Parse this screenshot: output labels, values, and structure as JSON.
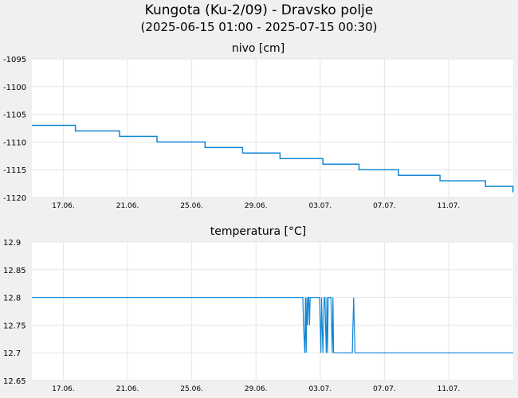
{
  "header": {
    "title": "Kungota (Ku-2/09) - Dravsko polje",
    "subtitle": "(2025-06-15 01:00 - 2025-07-15 00:30)"
  },
  "colors": {
    "background": "#f0f0f0",
    "plot_background": "#ffffff",
    "grid": "#e6e6e6",
    "line": "#1187d4"
  },
  "chart_data": [
    {
      "type": "line",
      "title": "nivo [cm]",
      "xlabel": "",
      "ylabel": "",
      "xlim": [
        "2025-06-15 01:00",
        "2025-07-15 00:30"
      ],
      "ylim": [
        -1120,
        -1095
      ],
      "yticks": [
        -1095,
        -1100,
        -1105,
        -1110,
        -1115,
        -1120
      ],
      "xtick_labels": [
        "17.06.",
        "21.06.",
        "25.06.",
        "29.06.",
        "03.07.",
        "07.07.",
        "11.07."
      ],
      "grid": true,
      "series": [
        {
          "x": [
            "2025-06-15 01:00",
            "2025-06-17 18:00",
            "2025-06-17 18:00",
            "2025-06-20 12:00",
            "2025-06-20 12:00",
            "2025-06-22 20:00",
            "2025-06-22 20:00",
            "2025-06-25 20:00",
            "2025-06-25 20:00",
            "2025-06-28 04:00",
            "2025-06-28 04:00",
            "2025-06-30 12:00",
            "2025-06-30 12:00",
            "2025-07-03 04:00",
            "2025-07-03 04:00",
            "2025-07-05 10:00",
            "2025-07-05 10:00",
            "2025-07-07 21:00",
            "2025-07-07 21:00",
            "2025-07-10 11:00",
            "2025-07-10 11:00",
            "2025-07-13 07:00",
            "2025-07-13 07:00",
            "2025-07-15 00:00",
            "2025-07-15 00:00",
            "2025-07-15 00:30"
          ],
          "values": [
            -1107,
            -1107,
            -1108,
            -1108,
            -1109,
            -1109,
            -1110,
            -1110,
            -1111,
            -1111,
            -1112,
            -1112,
            -1113,
            -1113,
            -1114,
            -1114,
            -1115,
            -1115,
            -1116,
            -1116,
            -1117,
            -1117,
            -1118,
            -1118,
            -1119,
            -1119
          ]
        }
      ]
    },
    {
      "type": "line",
      "title": "temperatura [°C]",
      "xlabel": "",
      "ylabel": "",
      "xlim": [
        "2025-06-15 01:00",
        "2025-07-15 00:30"
      ],
      "ylim": [
        12.65,
        12.9
      ],
      "yticks": [
        12.9,
        12.85,
        12.8,
        12.75,
        12.7,
        12.65
      ],
      "ytick_labels": [
        "12.9",
        "12.85",
        "12.8",
        "12.75",
        "12.7",
        "12.65"
      ],
      "xtick_labels": [
        "17.06.",
        "21.06.",
        "25.06.",
        "29.06.",
        "03.07.",
        "07.07.",
        "11.07."
      ],
      "grid": true,
      "series": [
        {
          "x": [
            "2025-06-15 01:00",
            "2025-07-01 22:00",
            "2025-07-01 23:00",
            "2025-07-02 01:00",
            "2025-07-02 02:00",
            "2025-07-02 03:00",
            "2025-07-02 04:00",
            "2025-07-02 05:00",
            "2025-07-02 06:00",
            "2025-07-02 07:00",
            "2025-07-02 08:00",
            "2025-07-02 09:00",
            "2025-07-02 10:00",
            "2025-07-02 23:00",
            "2025-07-03 00:00",
            "2025-07-03 01:00",
            "2025-07-03 02:00",
            "2025-07-03 03:00",
            "2025-07-03 04:00",
            "2025-07-03 06:00",
            "2025-07-03 07:00",
            "2025-07-03 08:00",
            "2025-07-03 09:00",
            "2025-07-03 10:00",
            "2025-07-03 11:00",
            "2025-07-03 12:00",
            "2025-07-03 13:00",
            "2025-07-03 16:00",
            "2025-07-03 17:00",
            "2025-07-03 18:00",
            "2025-07-03 19:00",
            "2025-07-03 20:00",
            "2025-07-04 06:00",
            "2025-07-05 00:00",
            "2025-07-05 01:00",
            "2025-07-05 02:00",
            "2025-07-05 03:00",
            "2025-07-05 04:00",
            "2025-07-15 00:30"
          ],
          "values": [
            12.8,
            12.8,
            12.75,
            12.7,
            12.8,
            12.7,
            12.8,
            12.75,
            12.8,
            12.8,
            12.75,
            12.8,
            12.8,
            12.8,
            12.75,
            12.7,
            12.8,
            12.75,
            12.7,
            12.8,
            12.8,
            12.75,
            12.7,
            12.8,
            12.7,
            12.8,
            12.8,
            12.8,
            12.75,
            12.7,
            12.8,
            12.7,
            12.7,
            12.7,
            12.75,
            12.8,
            12.75,
            12.7,
            12.7
          ]
        }
      ]
    }
  ]
}
